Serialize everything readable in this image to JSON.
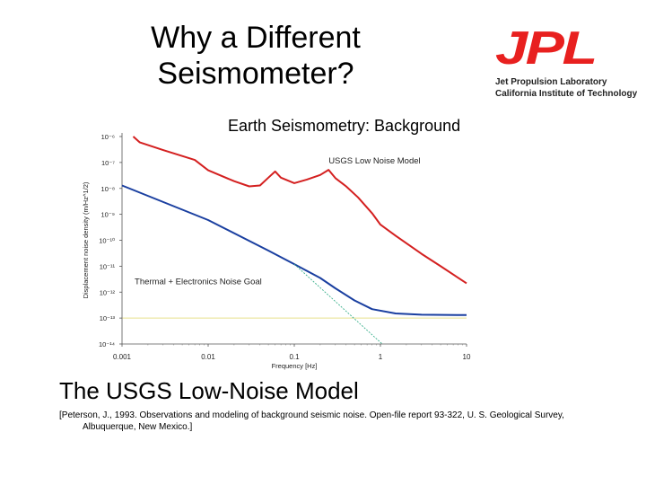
{
  "slide": {
    "title_line1": "Why a Different",
    "title_line2": "Seismometer?",
    "subtitle": "The USGS Low-Noise Model",
    "citation_line1": "[Peterson, J., 1993. Observations and modeling of background seismic noise. Open-file report 93-322, U. S. Geological Survey,",
    "citation_line2": "Albuquerque, New Mexico.]"
  },
  "logo": {
    "mark": "JPL",
    "line1": "Jet Propulsion Laboratory",
    "line2": "California Institute of Technology",
    "color": "#e8201f"
  },
  "chart_data": {
    "type": "line",
    "title": "Earth Seismometry: Background",
    "xlabel": "Frequency [Hz]",
    "ylabel": "Displacement noise density (m/Hz^1/2)",
    "xscale": "log",
    "yscale": "log",
    "xlim": [
      0.001,
      10
    ],
    "ylim": [
      1e-14,
      1e-06
    ],
    "x_ticks": [
      {
        "value": 0.001,
        "label": "0.001"
      },
      {
        "value": 0.01,
        "label": "0.01"
      },
      {
        "value": 0.1,
        "label": "0.1"
      },
      {
        "value": 1,
        "label": "1"
      },
      {
        "value": 10,
        "label": "10"
      }
    ],
    "y_ticks": [
      {
        "value": 1e-06,
        "label": "10⁻⁶"
      },
      {
        "value": 1e-07,
        "label": "10⁻⁷"
      },
      {
        "value": 1e-08,
        "label": "10⁻⁸"
      },
      {
        "value": 1e-09,
        "label": "10⁻⁹"
      },
      {
        "value": 1e-10,
        "label": "10⁻¹⁰"
      },
      {
        "value": 1e-11,
        "label": "10⁻¹¹"
      },
      {
        "value": 1e-12,
        "label": "10⁻¹²"
      },
      {
        "value": 1e-13,
        "label": "10⁻¹³"
      },
      {
        "value": 1e-14,
        "label": "10⁻¹⁴"
      }
    ],
    "series": [
      {
        "name": "USGS Low Noise Model",
        "color": "#d42020",
        "points": [
          [
            0.00135,
            1e-06
          ],
          [
            0.0016,
            6e-07
          ],
          [
            0.003,
            3e-07
          ],
          [
            0.007,
            1.25e-07
          ],
          [
            0.01,
            5e-08
          ],
          [
            0.02,
            1.9e-08
          ],
          [
            0.03,
            1.2e-08
          ],
          [
            0.04,
            1.3e-08
          ],
          [
            0.05,
            2.6e-08
          ],
          [
            0.06,
            4.5e-08
          ],
          [
            0.07,
            2.6e-08
          ],
          [
            0.1,
            1.6e-08
          ],
          [
            0.14,
            2.2e-08
          ],
          [
            0.2,
            3.3e-08
          ],
          [
            0.25,
            5.2e-08
          ],
          [
            0.3,
            2.5e-08
          ],
          [
            0.4,
            1.2e-08
          ],
          [
            0.55,
            4.5e-09
          ],
          [
            0.8,
            1.1e-09
          ],
          [
            1.0,
            4e-10
          ],
          [
            1.5,
            1.5e-10
          ],
          [
            3.0,
            3e-11
          ],
          [
            5.0,
            1e-11
          ],
          [
            10.0,
            2.2e-12
          ]
        ]
      },
      {
        "name": "Thermal + Electronics Noise Goal",
        "color": "#1a3fa0",
        "points": [
          [
            0.001,
            1.3e-08
          ],
          [
            0.01,
            6e-10
          ],
          [
            0.05,
            4e-11
          ],
          [
            0.1,
            1.2e-11
          ],
          [
            0.2,
            3.5e-12
          ],
          [
            0.3,
            1.4e-12
          ],
          [
            0.5,
            4.8e-13
          ],
          [
            0.8,
            2.2e-13
          ],
          [
            1.5,
            1.5e-13
          ],
          [
            3.0,
            1.35e-13
          ],
          [
            10.0,
            1.3e-13
          ]
        ]
      },
      {
        "name": "",
        "color": "#3ab08c",
        "dashed": true,
        "points": [
          [
            0.1,
            1.2e-11
          ],
          [
            1.05,
            1e-14
          ]
        ]
      }
    ],
    "reference_line": {
      "y": 1e-13,
      "color": "#e8e08c"
    },
    "annotations": [
      {
        "text": "USGS Low Noise Model",
        "x": 0.25,
        "y": 9e-08
      },
      {
        "text": "Thermal + Electronics Noise Goal",
        "x": 0.0014,
        "y": 2e-12
      }
    ],
    "grid": false,
    "legend": "none"
  }
}
